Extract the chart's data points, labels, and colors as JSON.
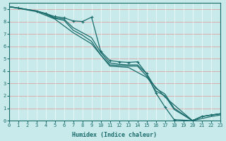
{
  "bg_color": "#c8eaea",
  "grid_color": "#ffffff",
  "line_color": "#1a6b6b",
  "xlabel": "Humidex (Indice chaleur)",
  "xlim": [
    0,
    23
  ],
  "ylim": [
    0,
    9.5
  ],
  "xticks": [
    0,
    1,
    2,
    3,
    4,
    5,
    6,
    7,
    8,
    9,
    10,
    11,
    12,
    13,
    14,
    15,
    16,
    17,
    18,
    19,
    20,
    21,
    22,
    23
  ],
  "yticks": [
    0,
    1,
    2,
    3,
    4,
    5,
    6,
    7,
    8,
    9
  ],
  "line1_x": [
    0,
    1,
    3,
    4,
    5,
    6,
    7,
    8,
    9,
    10,
    11,
    12,
    13,
    14,
    15,
    16,
    17,
    18,
    20,
    21,
    22,
    23
  ],
  "line1_y": [
    9.2,
    9.1,
    8.85,
    8.65,
    8.4,
    8.3,
    8.05,
    8.0,
    8.35,
    5.6,
    4.85,
    4.75,
    4.7,
    4.75,
    3.8,
    2.25,
    1.1,
    0.08,
    0.0,
    0.33,
    0.45,
    0.55
  ],
  "line2_x": [
    0,
    3,
    4,
    5,
    6,
    7,
    8,
    9,
    10,
    11,
    12,
    13,
    14,
    15,
    16,
    17,
    18,
    20,
    21,
    22,
    23
  ],
  "line2_y": [
    9.2,
    8.85,
    8.65,
    8.3,
    8.2,
    7.5,
    7.1,
    6.7,
    5.5,
    4.65,
    4.55,
    4.5,
    4.5,
    3.8,
    2.6,
    2.15,
    1.0,
    0.0,
    0.33,
    0.45,
    0.55
  ],
  "line3_x": [
    0,
    3,
    4,
    5,
    6,
    7,
    8,
    9,
    10,
    11,
    12,
    13,
    14,
    15,
    16,
    17,
    18,
    20,
    21,
    22,
    23
  ],
  "line3_y": [
    9.2,
    8.85,
    8.6,
    8.25,
    8.1,
    7.3,
    6.9,
    6.4,
    5.3,
    4.5,
    4.45,
    4.4,
    4.4,
    3.6,
    2.4,
    2.0,
    0.9,
    0.0,
    0.33,
    0.45,
    0.55
  ],
  "line4_x": [
    0,
    3,
    5,
    7,
    9,
    11,
    13,
    15,
    17,
    20,
    22,
    23
  ],
  "line4_y": [
    9.2,
    8.8,
    8.2,
    7.1,
    6.2,
    4.4,
    4.3,
    3.5,
    1.9,
    0.0,
    0.33,
    0.45
  ]
}
